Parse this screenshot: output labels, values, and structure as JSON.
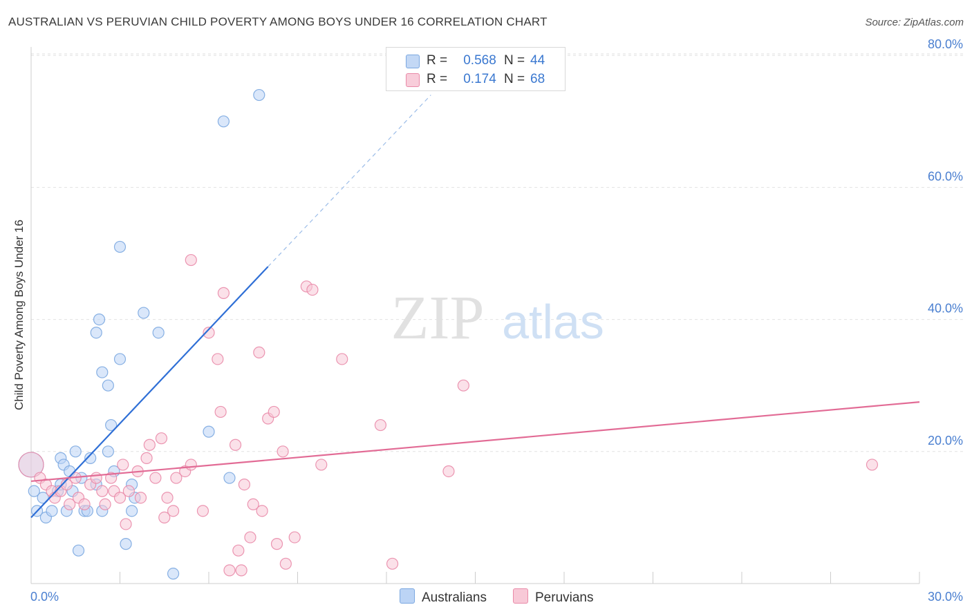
{
  "header": {
    "title": "AUSTRALIAN VS PERUVIAN CHILD POVERTY AMONG BOYS UNDER 16 CORRELATION CHART",
    "source": "Source: ZipAtlas.com"
  },
  "watermark": {
    "zip": "ZIP",
    "atlas": "atlas"
  },
  "legend": {
    "rows": [
      {
        "label": "R =",
        "r": "0.568",
        "n_label": "N =",
        "n": "44",
        "color": "#a9c8f2",
        "border": "#7aa7e0"
      },
      {
        "label": "R =",
        "r": "0.174",
        "n_label": "N =",
        "n": "68",
        "color": "#f6bfd0",
        "border": "#e98aa8"
      }
    ],
    "bottom": [
      {
        "name": "Australians",
        "color": "#bcd4f5",
        "border": "#7aa7e0"
      },
      {
        "name": "Peruvians",
        "color": "#f8c9d7",
        "border": "#e98aa8"
      }
    ]
  },
  "chart_data": {
    "type": "scatter",
    "title": "AUSTRALIAN VS PERUVIAN CHILD POVERTY AMONG BOYS UNDER 16 CORRELATION CHART",
    "xlabel": "",
    "ylabel": "Child Poverty Among Boys Under 16",
    "xlim": [
      0,
      30
    ],
    "ylim": [
      0,
      80
    ],
    "x_tick_labels": [
      {
        "value": 0,
        "label": "0.0%"
      },
      {
        "value": 30,
        "label": "30.0%"
      }
    ],
    "y_tick_labels": [
      {
        "value": 20,
        "label": "20.0%"
      },
      {
        "value": 40,
        "label": "40.0%"
      },
      {
        "value": 60,
        "label": "60.0%"
      },
      {
        "value": 80,
        "label": "80.0%"
      }
    ],
    "grid": true,
    "legend_position": "top-center",
    "series": [
      {
        "name": "Australians",
        "color": "#7aa7e0",
        "fill": "#bcd4f5",
        "points": [
          [
            0.0,
            18.0
          ],
          [
            0.1,
            14.0
          ],
          [
            0.2,
            11.0
          ],
          [
            0.4,
            13.0
          ],
          [
            0.5,
            10.0
          ],
          [
            0.7,
            11.0
          ],
          [
            0.9,
            14.0
          ],
          [
            1.0,
            19.0
          ],
          [
            1.0,
            15.0
          ],
          [
            1.1,
            18.0
          ],
          [
            1.2,
            11.0
          ],
          [
            1.3,
            17.0
          ],
          [
            1.4,
            14.0
          ],
          [
            1.5,
            20.0
          ],
          [
            1.6,
            5.0
          ],
          [
            1.7,
            16.0
          ],
          [
            1.8,
            11.0
          ],
          [
            1.9,
            11.0
          ],
          [
            2.0,
            19.0
          ],
          [
            2.2,
            15.0
          ],
          [
            2.2,
            38.0
          ],
          [
            2.3,
            40.0
          ],
          [
            2.4,
            32.0
          ],
          [
            2.4,
            11.0
          ],
          [
            2.6,
            30.0
          ],
          [
            2.6,
            20.0
          ],
          [
            2.7,
            24.0
          ],
          [
            2.8,
            17.0
          ],
          [
            3.0,
            34.0
          ],
          [
            3.0,
            51.0
          ],
          [
            3.2,
            6.0
          ],
          [
            3.4,
            11.0
          ],
          [
            3.4,
            15.0
          ],
          [
            3.5,
            13.0
          ],
          [
            3.8,
            41.0
          ],
          [
            4.3,
            38.0
          ],
          [
            4.8,
            1.5
          ],
          [
            6.0,
            23.0
          ],
          [
            6.5,
            70.0
          ],
          [
            6.7,
            16.0
          ],
          [
            7.7,
            74.0
          ]
        ],
        "regression": {
          "x": [
            0.0,
            8.0
          ],
          "y": [
            10.0,
            48.0
          ],
          "dashed_to": {
            "x": [
              8.0,
              13.5
            ],
            "y": [
              48.0,
              74.0
            ]
          }
        },
        "R": 0.568,
        "N": 44
      },
      {
        "name": "Peruvians",
        "color": "#e98aa8",
        "fill": "#f8c9d7",
        "points": [
          [
            0.0,
            18.0
          ],
          [
            0.3,
            16.0
          ],
          [
            0.5,
            15.0
          ],
          [
            0.7,
            14.0
          ],
          [
            0.8,
            13.0
          ],
          [
            1.0,
            14.0
          ],
          [
            1.2,
            15.0
          ],
          [
            1.3,
            12.0
          ],
          [
            1.5,
            16.0
          ],
          [
            1.6,
            13.0
          ],
          [
            1.8,
            12.0
          ],
          [
            2.0,
            15.0
          ],
          [
            2.2,
            16.0
          ],
          [
            2.4,
            14.0
          ],
          [
            2.5,
            12.0
          ],
          [
            2.7,
            16.0
          ],
          [
            2.8,
            14.0
          ],
          [
            3.0,
            13.0
          ],
          [
            3.1,
            18.0
          ],
          [
            3.2,
            9.0
          ],
          [
            3.3,
            14.0
          ],
          [
            3.6,
            17.0
          ],
          [
            3.7,
            13.0
          ],
          [
            3.9,
            19.0
          ],
          [
            4.0,
            21.0
          ],
          [
            4.2,
            16.0
          ],
          [
            4.4,
            22.0
          ],
          [
            4.5,
            10.0
          ],
          [
            4.6,
            13.0
          ],
          [
            4.8,
            11.0
          ],
          [
            4.9,
            16.0
          ],
          [
            5.2,
            17.0
          ],
          [
            5.4,
            18.0
          ],
          [
            5.4,
            49.0
          ],
          [
            5.8,
            11.0
          ],
          [
            6.0,
            38.0
          ],
          [
            6.3,
            34.0
          ],
          [
            6.4,
            26.0
          ],
          [
            6.5,
            44.0
          ],
          [
            6.7,
            2.0
          ],
          [
            6.9,
            21.0
          ],
          [
            7.0,
            5.0
          ],
          [
            7.1,
            2.0
          ],
          [
            7.2,
            15.0
          ],
          [
            7.4,
            7.0
          ],
          [
            7.5,
            12.0
          ],
          [
            7.7,
            35.0
          ],
          [
            7.8,
            11.0
          ],
          [
            8.0,
            25.0
          ],
          [
            8.2,
            26.0
          ],
          [
            8.3,
            6.0
          ],
          [
            8.5,
            20.0
          ],
          [
            8.6,
            3.0
          ],
          [
            8.9,
            7.0
          ],
          [
            9.3,
            45.0
          ],
          [
            9.5,
            44.5
          ],
          [
            9.8,
            18.0
          ],
          [
            10.5,
            34.0
          ],
          [
            11.8,
            24.0
          ],
          [
            12.2,
            3.0
          ],
          [
            14.1,
            17.0
          ],
          [
            14.6,
            30.0
          ],
          [
            28.4,
            18.0
          ]
        ],
        "regression": {
          "x": [
            0.0,
            30.0
          ],
          "y": [
            15.5,
            27.5
          ]
        },
        "R": 0.174,
        "N": 68
      }
    ]
  }
}
